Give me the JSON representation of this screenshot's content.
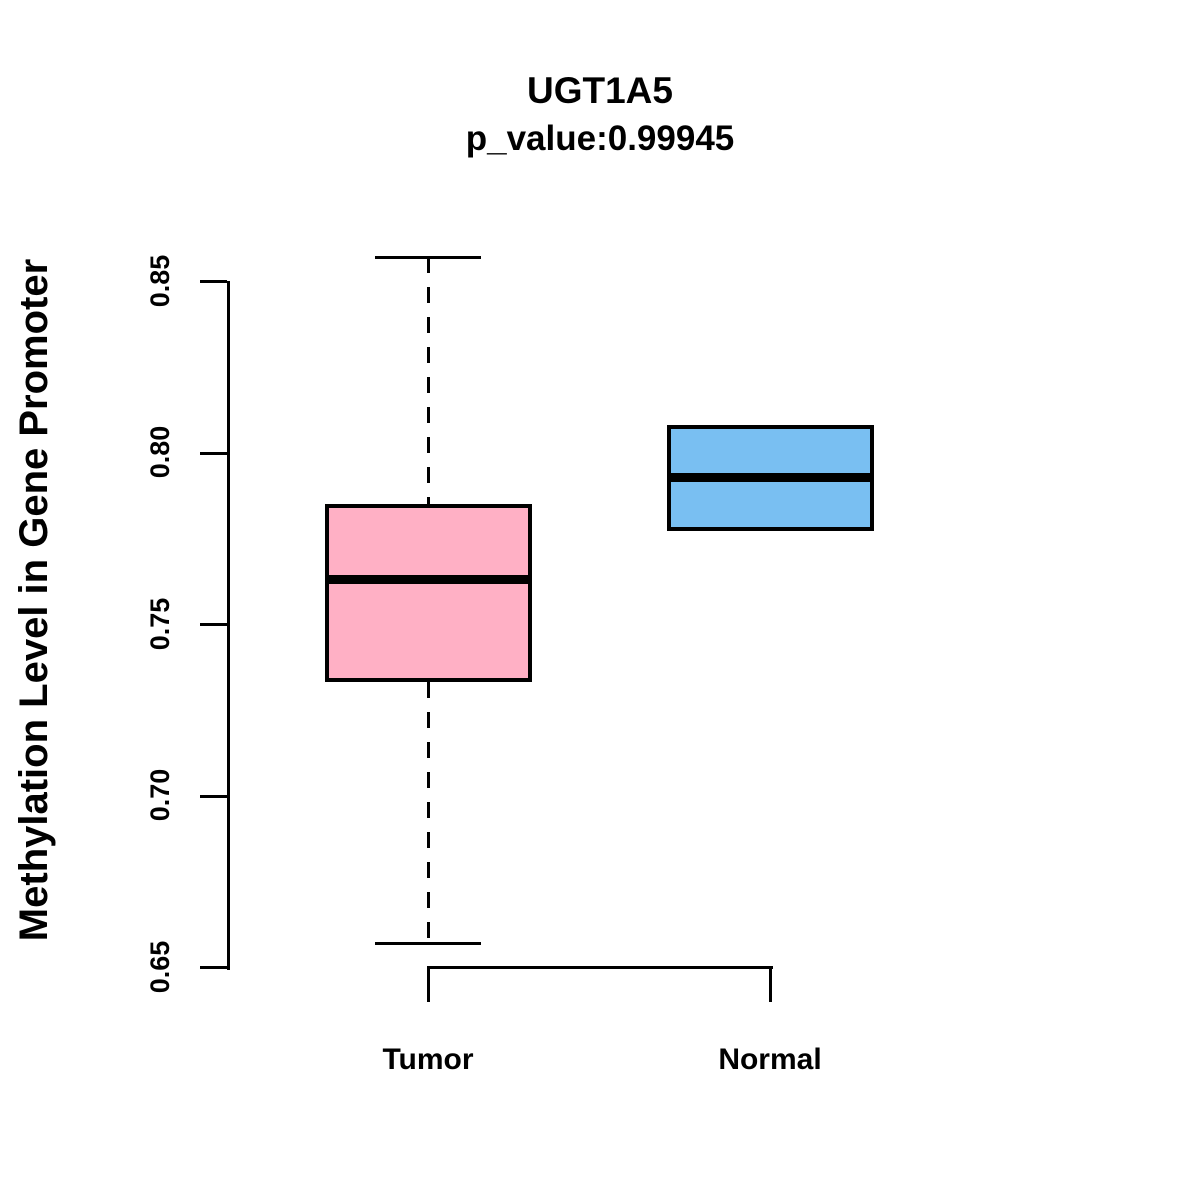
{
  "chart_data": {
    "type": "boxplot",
    "title": "UGT1A5",
    "subtitle": "p_value:0.99945",
    "p_value": 0.99945,
    "gene": "UGT1A5",
    "ylabel": "Methylation Level in Gene Promoter",
    "xlabel": "",
    "y_axis": {
      "min": 0.65,
      "max": 0.85,
      "tick_labels": [
        "0.85",
        "0.80",
        "0.75",
        "0.70",
        "0.65"
      ],
      "tick_values": [
        0.85,
        0.8,
        0.75,
        0.7,
        0.65
      ]
    },
    "categories": [
      "Tumor",
      "Normal"
    ],
    "groups": [
      {
        "label": "Tumor",
        "color": "#FFB0C5",
        "stats": {
          "whisker_low": 0.657,
          "q1": 0.733,
          "median": 0.763,
          "q3": 0.785,
          "whisker_high": 0.857
        }
      },
      {
        "label": "Normal",
        "color": "#79BFF2",
        "stats": {
          "whisker_low": 0.777,
          "q1": 0.777,
          "median": 0.793,
          "q3": 0.808,
          "whisker_high": 0.808
        }
      }
    ],
    "layout": {
      "grid": false,
      "legend": false,
      "whisker_style": "dashed",
      "box_border_color": "#000000",
      "median_color": "#000000"
    }
  }
}
